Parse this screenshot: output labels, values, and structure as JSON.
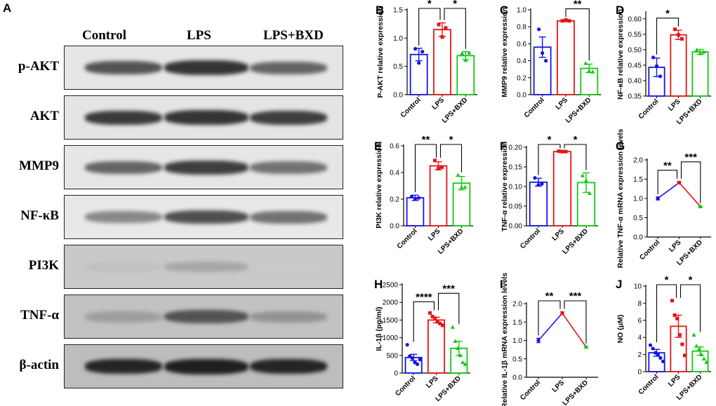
{
  "panel_A": {
    "letter": "A",
    "columns": [
      "Control",
      "LPS",
      "LPS+BXD"
    ],
    "rows": [
      {
        "label": "p-AKT",
        "band_darkness": [
          0.7,
          0.85,
          0.62
        ],
        "bg": "#e6e6e6"
      },
      {
        "label": "AKT",
        "band_darkness": [
          0.82,
          0.85,
          0.8
        ],
        "bg": "#e4e4e4"
      },
      {
        "label": "MMP9",
        "band_darkness": [
          0.62,
          0.8,
          0.55
        ],
        "bg": "#e6e6e6"
      },
      {
        "label": "NF-κB",
        "band_darkness": [
          0.45,
          0.72,
          0.55
        ],
        "bg": "#e8e8e8"
      },
      {
        "label": "PI3K",
        "band_darkness": [
          0.18,
          0.3,
          0.14
        ],
        "bg": "#c9c9c9"
      },
      {
        "label": "TNF-α",
        "band_darkness": [
          0.35,
          0.7,
          0.4
        ],
        "bg": "#c2c2c2"
      },
      {
        "label": "β-actin",
        "band_darkness": [
          0.92,
          0.95,
          0.92
        ],
        "bg": "#bdbdbd"
      }
    ]
  },
  "colors": {
    "Control": "#1414e6",
    "LPS": "#e61414",
    "LPS+BXD": "#14c814"
  },
  "chart_data": [
    {
      "panel": "B",
      "type": "bar",
      "ylabel": "P-AKT relative  expression",
      "categories": [
        "Control",
        "LPS",
        "LPS+BXD"
      ],
      "values": [
        0.71,
        1.15,
        0.69
      ],
      "errors": [
        0.11,
        0.12,
        0.07
      ],
      "points": [
        [
          0.81,
          0.56,
          0.76
        ],
        [
          1.24,
          1.02,
          1.18
        ],
        [
          0.73,
          0.61,
          0.74
        ]
      ],
      "ylim": [
        0,
        1.5
      ],
      "yticks": [
        0.0,
        0.5,
        1.0,
        1.5
      ],
      "ytick_labels": [
        "0.0",
        "0.5",
        "1.0",
        "1.5"
      ],
      "brackets": [
        {
          "from": 0,
          "to": 1,
          "label": "*",
          "level": 0
        },
        {
          "from": 1,
          "to": 2,
          "label": "*",
          "level": 0
        }
      ]
    },
    {
      "panel": "C",
      "type": "bar",
      "ylabel": "MMP9 relative  expression",
      "categories": [
        "Control",
        "LPS",
        "LPS+BXD"
      ],
      "values": [
        0.56,
        0.87,
        0.31
      ],
      "errors": [
        0.12,
        0.01,
        0.05
      ],
      "points": [
        [
          0.77,
          0.49,
          0.4
        ],
        [
          0.87,
          0.88,
          0.87
        ],
        [
          0.37,
          0.28,
          0.27
        ]
      ],
      "ylim": [
        0,
        1.0
      ],
      "yticks": [
        0.0,
        0.2,
        0.4,
        0.6,
        0.8,
        1.0
      ],
      "ytick_labels": [
        "0.0",
        "0.2",
        "0.4",
        "0.6",
        "0.8",
        "1.0"
      ],
      "brackets": [
        {
          "from": 1,
          "to": 2,
          "label": "**",
          "level": 0
        }
      ]
    },
    {
      "panel": "D",
      "type": "bar",
      "ylabel": "NF-κB relative expression",
      "categories": [
        "Control",
        "LPS",
        "LPS+BXD"
      ],
      "values": [
        0.443,
        0.548,
        0.493
      ],
      "errors": [
        0.03,
        0.015,
        0.008
      ],
      "points": [
        [
          0.475,
          0.447,
          0.414
        ],
        [
          0.566,
          0.548,
          0.535
        ],
        [
          0.499,
          0.488,
          0.493
        ]
      ],
      "ylim": [
        0.35,
        0.62
      ],
      "yticks": [
        0.35,
        0.4,
        0.45,
        0.5,
        0.55,
        0.6
      ],
      "ytick_labels": [
        "0.35",
        "0.40",
        "0.45",
        "0.50",
        "0.55",
        "0.60"
      ],
      "brackets": [
        {
          "from": 0,
          "to": 1,
          "label": "*",
          "level": 0
        }
      ]
    },
    {
      "panel": "E",
      "type": "bar",
      "ylabel": "PI3K relative  expression",
      "categories": [
        "Control",
        "LPS",
        "LPS+BXD"
      ],
      "values": [
        0.21,
        0.45,
        0.32
      ],
      "errors": [
        0.02,
        0.03,
        0.05
      ],
      "points": [
        [
          0.22,
          0.2,
          0.21
        ],
        [
          0.49,
          0.43,
          0.44
        ],
        [
          0.38,
          0.29,
          0.29
        ]
      ],
      "ylim": [
        0,
        0.6
      ],
      "yticks": [
        0.0,
        0.2,
        0.4,
        0.6
      ],
      "ytick_labels": [
        "0.0",
        "0.2",
        "0.4",
        "0.6"
      ],
      "brackets": [
        {
          "from": 0,
          "to": 1,
          "label": "**",
          "level": 0
        },
        {
          "from": 1,
          "to": 2,
          "label": "*",
          "level": 0
        }
      ]
    },
    {
      "panel": "F",
      "type": "bar",
      "ylabel": "TNF-α relative  expression",
      "categories": [
        "Control",
        "LPS",
        "LPS+BXD"
      ],
      "values": [
        0.111,
        0.189,
        0.11
      ],
      "errors": [
        0.01,
        0.001,
        0.025
      ],
      "points": [
        [
          0.122,
          0.104,
          0.107
        ],
        [
          0.19,
          0.189,
          0.189
        ],
        [
          0.128,
          0.115,
          0.083
        ]
      ],
      "ylim": [
        0,
        0.2
      ],
      "yticks": [
        0.0,
        0.05,
        0.1,
        0.15,
        0.2
      ],
      "ytick_labels": [
        "0.00",
        "0.05",
        "0.10",
        "0.15",
        "0.20"
      ],
      "brackets": [
        {
          "from": 0,
          "to": 1,
          "label": "*",
          "level": 0
        },
        {
          "from": 1,
          "to": 2,
          "label": "*",
          "level": 0
        }
      ]
    },
    {
      "panel": "G",
      "type": "line",
      "ylabel": "Relative TNF-α mRNA expression levels",
      "categories": [
        "Control",
        "LPS",
        "LPS+BXD"
      ],
      "values": [
        1.0,
        1.41,
        0.79
      ],
      "errors": [
        0.04,
        0.03,
        0.01
      ],
      "ylim": [
        0,
        2.0
      ],
      "yticks": [
        0.0,
        0.5,
        1.0,
        1.5,
        2.0
      ],
      "ytick_labels": [
        "0.0",
        "0.5",
        "1.0",
        "1.5",
        "2.0"
      ],
      "brackets": [
        {
          "from": 0,
          "to": 1,
          "label": "**",
          "level": 0
        },
        {
          "from": 1,
          "to": 2,
          "label": "***",
          "level": 1
        }
      ]
    },
    {
      "panel": "H",
      "type": "bar",
      "ylabel": "IL-1β (pg/ml)",
      "categories": [
        "Control",
        "LPS",
        "LPS+BXD"
      ],
      "values": [
        440,
        1500,
        700
      ],
      "errors": [
        90,
        80,
        200
      ],
      "points": [
        [
          800,
          480,
          420,
          300,
          250,
          380
        ],
        [
          1700,
          1600,
          1550,
          1450,
          1400,
          1350
        ],
        [
          1300,
          900,
          700,
          500,
          300,
          250
        ]
      ],
      "ylim": [
        0,
        2500
      ],
      "yticks": [
        0,
        500,
        1000,
        1500,
        2000,
        2500
      ],
      "ytick_labels": [
        "0",
        "500",
        "1000",
        "1500",
        "2000",
        "2500"
      ],
      "brackets": [
        {
          "from": 0,
          "to": 1,
          "label": "****",
          "level": 0
        },
        {
          "from": 1,
          "to": 2,
          "label": "***",
          "level": 1
        }
      ]
    },
    {
      "panel": "I",
      "type": "line",
      "ylabel": "Relative IL-1β mRNA expression levels",
      "categories": [
        "Control",
        "LPS",
        "LPS+BXD"
      ],
      "values": [
        1.0,
        1.74,
        0.82
      ],
      "errors": [
        0.06,
        0.04,
        0.02
      ],
      "ylim": [
        0,
        2.0
      ],
      "yticks": [
        0.0,
        0.5,
        1.0,
        1.5,
        2.0
      ],
      "ytick_labels": [
        "0.0",
        "0.5",
        "1.0",
        "1.5",
        "2.0"
      ],
      "brackets": [
        {
          "from": 0,
          "to": 1,
          "label": "**",
          "level": 0
        },
        {
          "from": 1,
          "to": 2,
          "label": "***",
          "level": 1
        }
      ]
    },
    {
      "panel": "J",
      "type": "bar",
      "ylabel": "NO (μM)",
      "categories": [
        "Control",
        "LPS",
        "LPS+BXD"
      ],
      "values": [
        2.2,
        5.3,
        2.4
      ],
      "errors": [
        0.4,
        1.3,
        0.5
      ],
      "points": [
        [
          3.1,
          2.7,
          2.2,
          2.0,
          1.6,
          1.2
        ],
        [
          8.3,
          6.6,
          6.2,
          4.3,
          3.2,
          1.9
        ],
        [
          4.3,
          3.0,
          2.6,
          2.0,
          1.5,
          1.1
        ]
      ],
      "ylim": [
        0,
        10
      ],
      "yticks": [
        0,
        2,
        4,
        6,
        8,
        10
      ],
      "ytick_labels": [
        "0",
        "2",
        "4",
        "6",
        "8",
        "10"
      ],
      "brackets": [
        {
          "from": 0,
          "to": 1,
          "label": "*",
          "level": 0
        },
        {
          "from": 1,
          "to": 2,
          "label": "*",
          "level": 0
        }
      ]
    }
  ]
}
